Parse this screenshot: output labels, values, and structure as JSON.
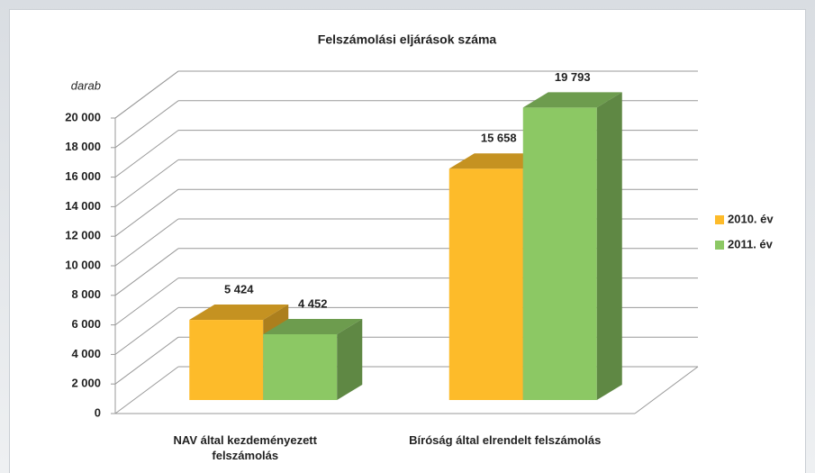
{
  "chart_data": {
    "type": "bar3d",
    "title": "Felszámolási eljárások száma",
    "y_label": "darab",
    "categories": [
      "NAV által kezdeményezett felszámolás",
      "Bíróság által elrendelt felszámolás"
    ],
    "series": [
      {
        "name": "2010. év",
        "color": "#fdbb2a",
        "values": [
          5424,
          15658
        ],
        "value_labels": [
          "5 424",
          "15 658"
        ]
      },
      {
        "name": "2011. év",
        "color": "#8cc864",
        "values": [
          4452,
          19793
        ],
        "value_labels": [
          "4 452",
          "19 793"
        ]
      }
    ],
    "ylim": [
      0,
      20000
    ],
    "yticks": [
      0,
      {
        "value": 2000,
        "label": "2 000"
      },
      {
        "value": 4000,
        "label": "4 000"
      },
      {
        "value": 6000,
        "label": "6 000"
      },
      {
        "value": 8000,
        "label": "8 000"
      },
      {
        "value": 10000,
        "label": "10 000"
      },
      {
        "value": 12000,
        "label": "12 000"
      },
      {
        "value": 14000,
        "label": "14 000"
      },
      {
        "value": 16000,
        "label": "16 000"
      },
      {
        "value": 18000,
        "label": "18 000"
      },
      {
        "value": 20000,
        "label": "20 000"
      }
    ],
    "grid": true,
    "legend": "right"
  }
}
